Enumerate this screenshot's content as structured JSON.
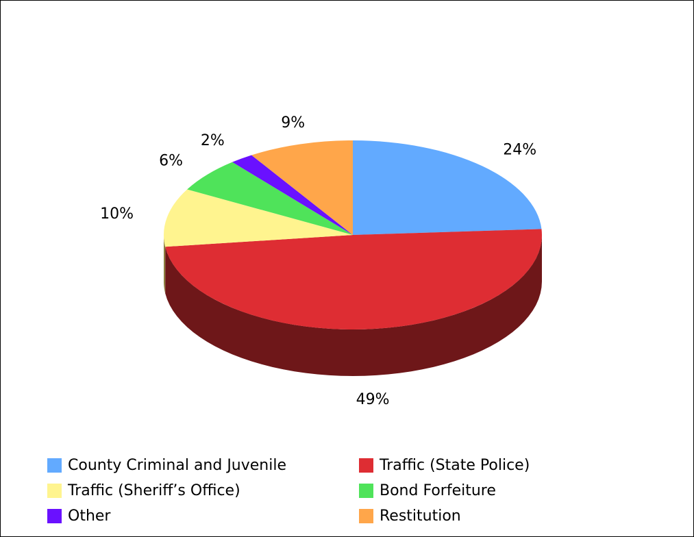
{
  "chart_data": {
    "type": "pie",
    "style": "3d",
    "title": "",
    "slices": [
      {
        "label": "County Criminal and Juvenile",
        "value": 24,
        "value_label": "24%",
        "color": "#62aaff",
        "side_color": "#3c6a9c"
      },
      {
        "label": "Traffic (State Police)",
        "value": 49,
        "value_label": "49%",
        "color": "#de2d33",
        "side_color": "#6e1719"
      },
      {
        "label": "Traffic (Sheriff’s Office)",
        "value": 10,
        "value_label": "10%",
        "color": "#fff48f",
        "side_color": "#8c8040"
      },
      {
        "label": "Bond Forfeiture",
        "value": 6,
        "value_label": "6%",
        "color": "#4fe35a",
        "side_color": "#2a7a30"
      },
      {
        "label": "Other",
        "value": 2,
        "value_label": "2%",
        "color": "#6a11ff",
        "side_color": "#3a0990"
      },
      {
        "label": "Restitution",
        "value": 9,
        "value_label": "9%",
        "color": "#ffa64a",
        "side_color": "#8c5a28"
      }
    ],
    "legend_position": "bottom"
  }
}
